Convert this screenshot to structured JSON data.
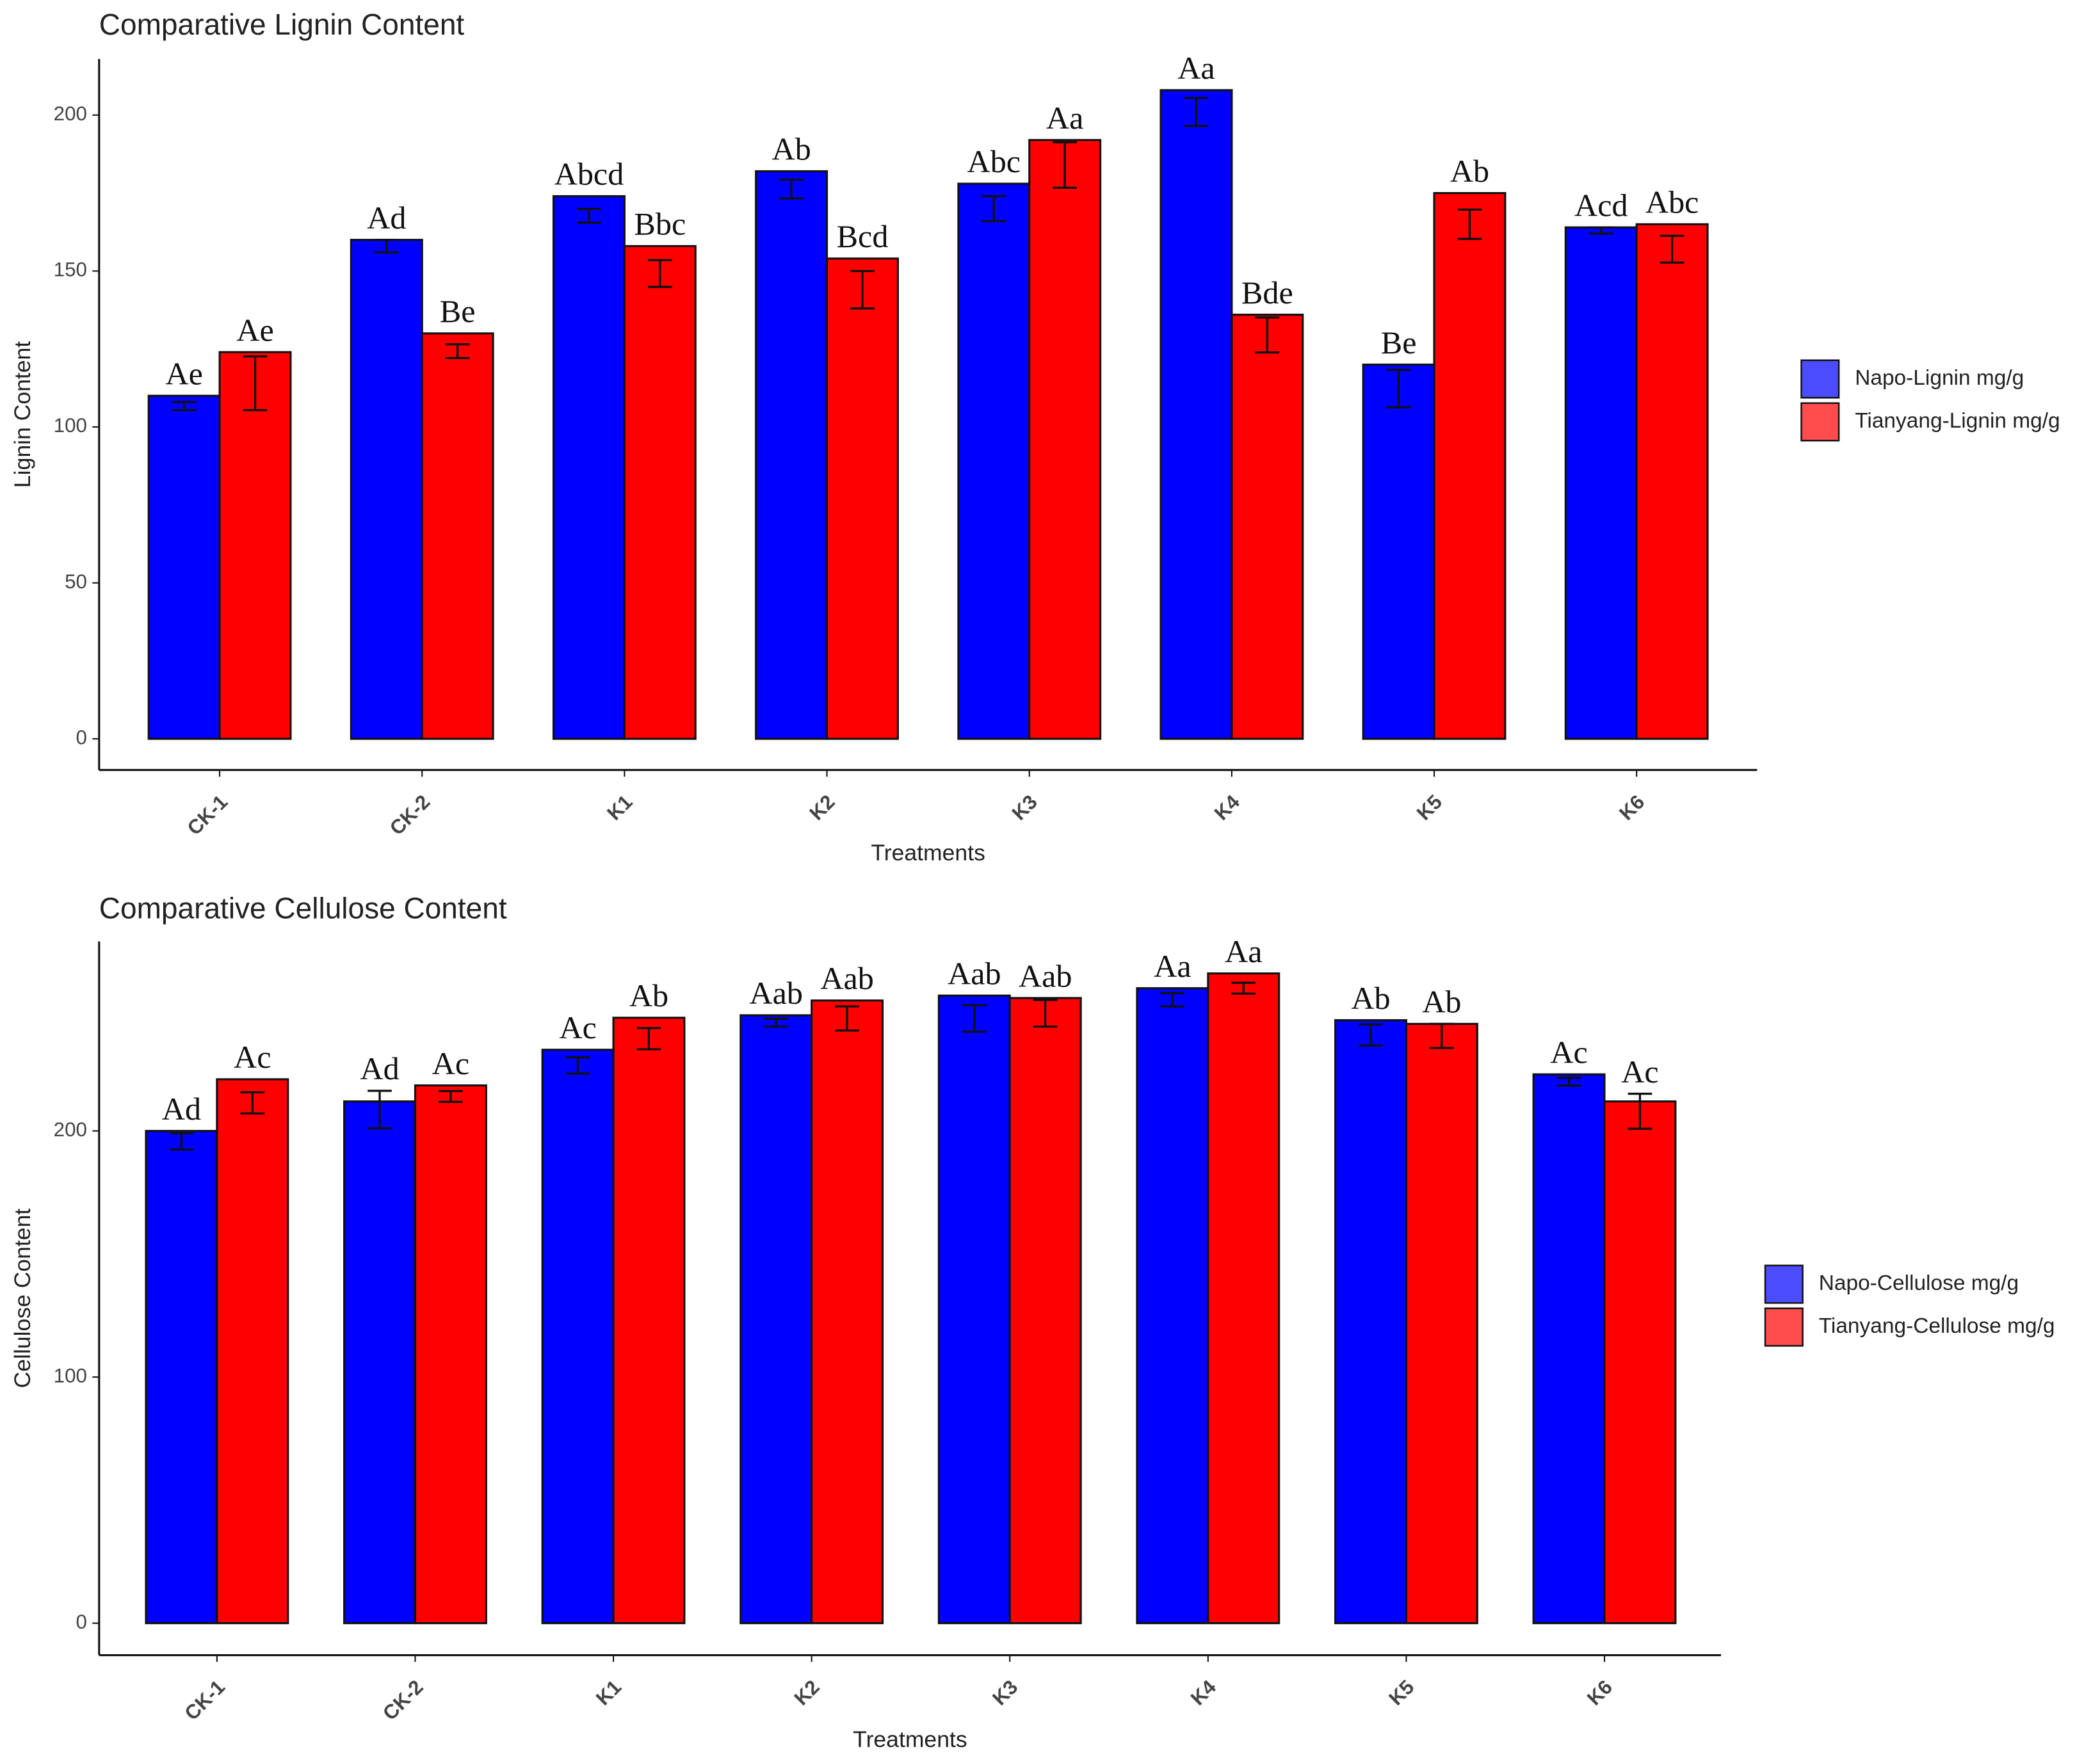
{
  "chart_data": [
    {
      "type": "bar",
      "title": "Comparative Lignin Content",
      "x_label": "Treatments",
      "y_label": "Lignin Content",
      "categories": [
        "CK-1",
        "CK-2",
        "K1",
        "K2",
        "K3",
        "K4",
        "K5",
        "K6"
      ],
      "ylim": [
        -10,
        218
      ],
      "yticks": [
        0,
        50,
        100,
        150,
        200
      ],
      "series": [
        {
          "name": "Napo-Lignin mg/g",
          "color": "#0000ff",
          "values": [
            110,
            160,
            174,
            182,
            178,
            208,
            120,
            164
          ],
          "mean": [
            106.7,
            158,
            167.7,
            176.3,
            170,
            201,
            112.3,
            163
          ],
          "error": [
            1.3,
            2,
            2.2,
            3,
            4,
            4.5,
            6,
            1
          ],
          "letters": [
            "Ae",
            "Ad",
            "Abcd",
            "Ab",
            "Abc",
            "Aa",
            "Be",
            "Acd"
          ]
        },
        {
          "name": "Tianyang-Lignin mg/g",
          "color": "#ff0000",
          "values": [
            124,
            130,
            158,
            154,
            192,
            136,
            175,
            165
          ],
          "mean": [
            114,
            124.3,
            149.2,
            144,
            184,
            129.5,
            165,
            157
          ],
          "error": [
            8.6,
            2.2,
            4.3,
            6,
            7.3,
            5.6,
            4.7,
            4.3
          ],
          "letters": [
            "Ae",
            "Be",
            "Bbc",
            "Bcd",
            "Aa",
            "Bde",
            "Ab",
            "Abc"
          ]
        }
      ]
    },
    {
      "type": "bar",
      "title": "Comparative Cellulose Content",
      "x_label": "Treatments",
      "y_label": "Cellulose Content",
      "categories": [
        "CK-1",
        "CK-2",
        "K1",
        "K2",
        "K3",
        "K4",
        "K5",
        "K6"
      ],
      "ylim": [
        -13,
        277
      ],
      "yticks": [
        0,
        100,
        200
      ],
      "series": [
        {
          "name": "Napo-Cellulose mg/g",
          "color": "#0000ff",
          "values": [
            200,
            212,
            233,
            247,
            255,
            258,
            245,
            223
          ],
          "mean": [
            195.7,
            208.7,
            226.6,
            244,
            245.7,
            253.3,
            239,
            220
          ],
          "error": [
            3.3,
            7.6,
            3.3,
            1.6,
            5.4,
            2.7,
            4.3,
            1.6
          ],
          "letters": [
            "Ad",
            "Ad",
            "Ac",
            "Aab",
            "Aab",
            "Aa",
            "Ab",
            "Ac"
          ]
        },
        {
          "name": "Tianyang-Cellulose mg/g",
          "color": "#ff0000",
          "values": [
            221,
            218.5,
            246,
            253,
            254,
            264,
            243.5,
            212
          ],
          "mean": [
            211.4,
            214,
            237.5,
            245.7,
            247.8,
            258,
            238.6,
            208
          ],
          "error": [
            4.3,
            2.2,
            4.3,
            4.9,
            5.4,
            2.2,
            4.9,
            7.1
          ],
          "letters": [
            "Ac",
            "Ac",
            "Ab",
            "Aab",
            "Aab",
            "Aa",
            "Ab",
            "Ac"
          ]
        }
      ]
    }
  ]
}
